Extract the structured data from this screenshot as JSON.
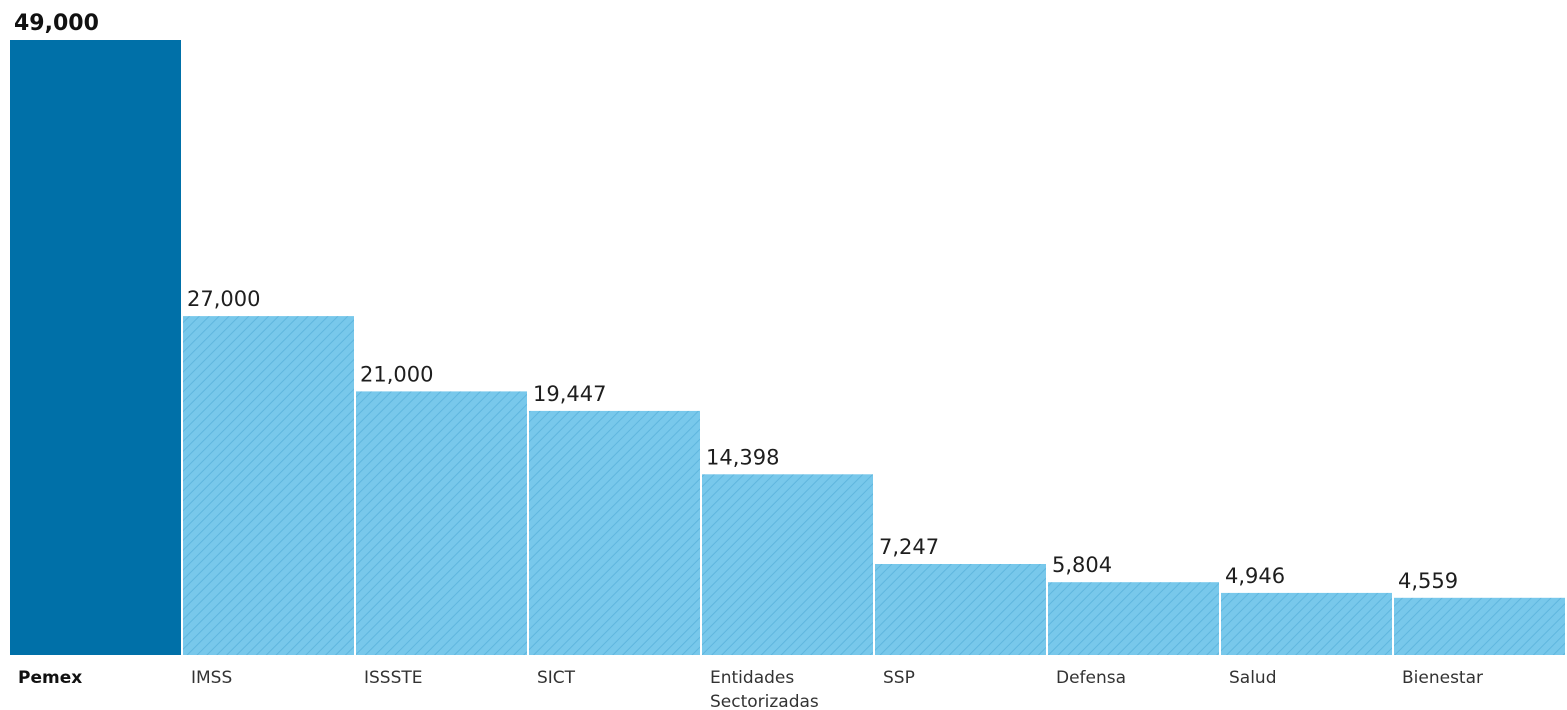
{
  "chart_data": {
    "type": "bar",
    "categories": [
      "Pemex",
      "IMSS",
      "ISSSTE",
      "SICT",
      "Entidades Sectorizadas",
      "SSP",
      "Defensa",
      "Salud",
      "Bienestar"
    ],
    "category_lines": [
      [
        "Pemex"
      ],
      [
        "IMSS"
      ],
      [
        "ISSSTE"
      ],
      [
        "SICT"
      ],
      [
        "Entidades",
        "Sectorizadas"
      ],
      [
        "SSP"
      ],
      [
        "Defensa"
      ],
      [
        "Salud"
      ],
      [
        "Bienestar"
      ]
    ],
    "values": [
      49000,
      27000,
      21000,
      19447,
      14398,
      7247,
      5804,
      4946,
      4559
    ],
    "value_labels": [
      "49,000",
      "27,000",
      "21,000",
      "19,447",
      "14,398",
      "7,247",
      "5,804",
      "4,946",
      "4,559"
    ],
    "highlight_index": 0,
    "title": "",
    "xlabel": "",
    "ylabel": "",
    "ylim": [
      0,
      49000
    ],
    "grid": false,
    "legend": "none",
    "colors": {
      "highlight": "#0070a8",
      "bar": "#78c8eb",
      "hatch": "#5fb6de",
      "divider": "#ffffff"
    }
  }
}
